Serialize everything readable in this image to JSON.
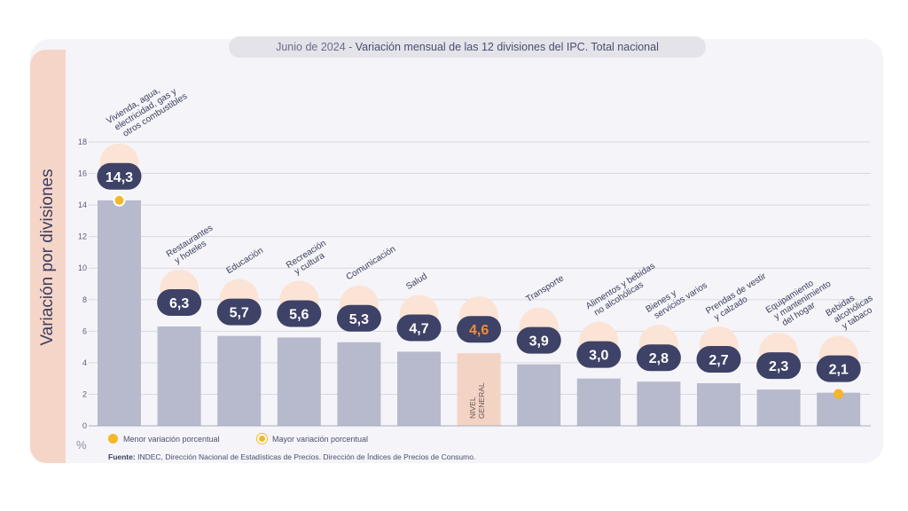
{
  "title_prefix": "Junio de 2024 - ",
  "title_main": "Variación mensual de las 12 divisiones del IPC. Total nacional",
  "ylabel": "Variación por divisiones",
  "unit": "%",
  "legend": [
    {
      "label": "Menor variación porcentual",
      "color": "#f4b72a"
    },
    {
      "label": "Mayor variación porcentual",
      "color": "#f4b72a"
    }
  ],
  "source_label": "Fuente:",
  "source_text": "INDEC, Dirección Nacional de Estadísticas de Precios. Dirección de Índices de Precios de Consumo.",
  "colors": {
    "bar": "#b7bacc",
    "highlight_bar": "#f3d3c4",
    "badge": "#3d4266",
    "highlight_text": "#f28c38",
    "grid": "#d9d9e2"
  },
  "chart_data": {
    "type": "bar",
    "title": "Junio de 2024 - Variación mensual de las 12 divisiones del IPC. Total nacional",
    "ylabel": "Variación por divisiones",
    "ylim": [
      0,
      18
    ],
    "yticks": [
      0,
      2,
      4,
      6,
      8,
      10,
      12,
      14,
      16,
      18
    ],
    "grid": true,
    "categories": [
      "Vivienda, agua, electricidad, gas y otros combustibles",
      "Restaurantes y hoteles",
      "Educación",
      "Recreación y cultura",
      "Comunicación",
      "Salud",
      "NIVEL GENERAL",
      "Transporte",
      "Alimentos y bebidas no alcohólicas",
      "Bienes y servicios varios",
      "Prendas de vestir y calzado",
      "Equipamiento y mantenimiento del hogar",
      "Bebidas alcohólicas y tabaco"
    ],
    "label_lines": [
      [
        "Vivienda, agua,",
        "electricidad, gas y",
        "otros combustibles"
      ],
      [
        "Restaurantes",
        "y hoteles"
      ],
      [
        "Educación"
      ],
      [
        "Recreación",
        "y cultura"
      ],
      [
        "Comunicación"
      ],
      [
        "Salud"
      ],
      [
        "NIVEL",
        "GENERAL"
      ],
      [
        "Transporte"
      ],
      [
        "Alimentos y bebidas",
        "no alcohólicas"
      ],
      [
        "Bienes y",
        "servicios varios"
      ],
      [
        "Prendas de vestir",
        "y calzado"
      ],
      [
        "Equipamiento",
        "y mantenimiento",
        "del hogar"
      ],
      [
        "Bebidas",
        "alcohólicas",
        "y tabaco"
      ]
    ],
    "values": [
      14.3,
      6.3,
      5.7,
      5.6,
      5.3,
      4.7,
      4.6,
      3.9,
      3.0,
      2.8,
      2.7,
      2.3,
      2.1
    ],
    "value_labels": [
      "14,3",
      "6,3",
      "5,7",
      "5,6",
      "5,3",
      "4,7",
      "4,6",
      "3,9",
      "3,0",
      "2,8",
      "2,7",
      "2,3",
      "2,1"
    ],
    "icons": [
      "lightbulb-icon",
      "cutlery-icon",
      "notebook-icon",
      "umbrella-icon",
      "phone-icon",
      "first-aid-icon",
      "basket-icon",
      "bus-icon",
      "food-icon",
      "scissors-icon",
      "shirt-icon",
      "appliance-icon",
      "wine-icon"
    ],
    "highlight_index": 6,
    "max_marker_index": 0,
    "min_marker_index": 12
  }
}
